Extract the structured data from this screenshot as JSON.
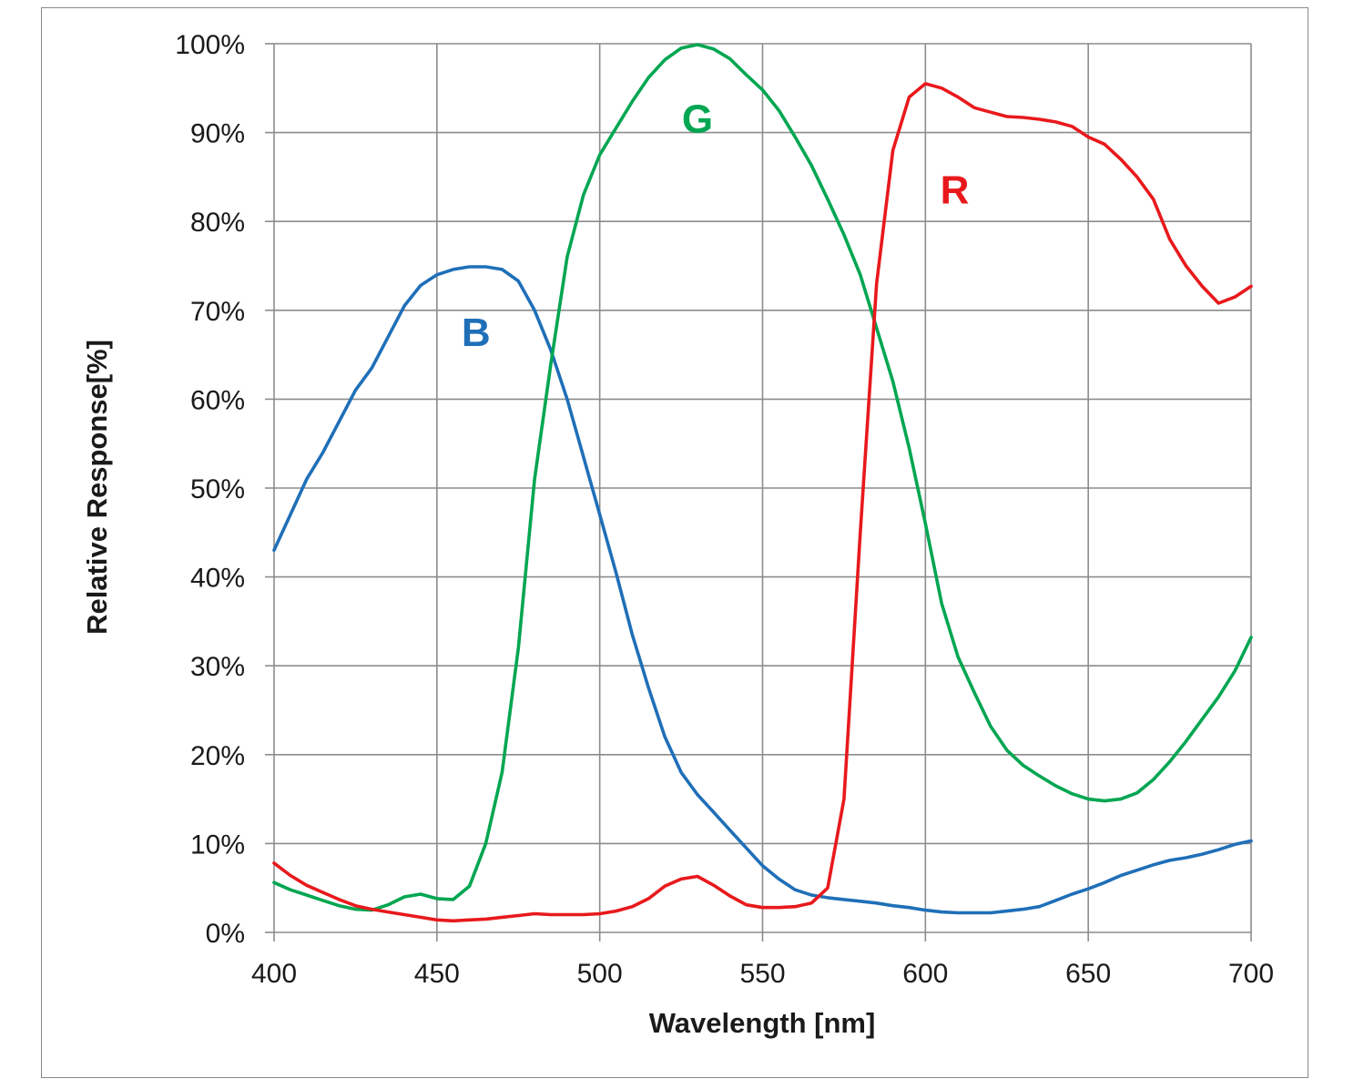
{
  "chart_data": {
    "type": "line",
    "title": "",
    "xlabel": "Wavelength [nm]",
    "ylabel": "Relative Response[%]",
    "xlim": [
      400,
      700
    ],
    "ylim": [
      0,
      100
    ],
    "x_ticks": [
      400,
      450,
      500,
      550,
      600,
      650,
      700
    ],
    "x_tick_labels": [
      "400",
      "450",
      "500",
      "550",
      "600",
      "650",
      "700"
    ],
    "y_ticks": [
      0,
      10,
      20,
      30,
      40,
      50,
      60,
      70,
      80,
      90,
      100
    ],
    "y_tick_labels": [
      "0%",
      "10%",
      "20%",
      "30%",
      "40%",
      "50%",
      "60%",
      "70%",
      "80%",
      "90%",
      "100%"
    ],
    "grid": true,
    "legend": "none",
    "annotations": [
      {
        "text": "B",
        "color": "#1f6fb8",
        "x": 462,
        "y": 66
      },
      {
        "text": "G",
        "color": "#00a651",
        "x": 530,
        "y": 90
      },
      {
        "text": "R",
        "color": "#e8191c",
        "x": 609,
        "y": 82
      }
    ],
    "series": [
      {
        "name": "B",
        "color": "#1f6fb8",
        "x": [
          400,
          405,
          410,
          415,
          420,
          425,
          430,
          435,
          440,
          445,
          450,
          455,
          460,
          465,
          470,
          475,
          480,
          485,
          490,
          495,
          500,
          505,
          510,
          515,
          520,
          525,
          530,
          535,
          540,
          545,
          550,
          555,
          560,
          565,
          570,
          575,
          580,
          585,
          590,
          595,
          600,
          605,
          610,
          615,
          620,
          625,
          630,
          635,
          640,
          645,
          650,
          655,
          660,
          665,
          670,
          675,
          680,
          685,
          690,
          695,
          700
        ],
        "y": [
          43,
          47,
          51,
          54,
          57.5,
          61,
          63.5,
          67,
          70.5,
          72.8,
          74,
          74.6,
          74.9,
          74.9,
          74.6,
          73.3,
          70,
          65.5,
          60,
          53.5,
          47,
          40.5,
          33.5,
          27.5,
          22,
          18,
          15.5,
          13.5,
          11.5,
          9.5,
          7.5,
          6,
          4.8,
          4.2,
          3.9,
          3.7,
          3.5,
          3.3,
          3.0,
          2.8,
          2.5,
          2.3,
          2.2,
          2.2,
          2.2,
          2.4,
          2.6,
          2.9,
          3.6,
          4.3,
          4.9,
          5.6,
          6.4,
          7.0,
          7.6,
          8.1,
          8.4,
          8.8,
          9.3,
          9.9,
          10.3
        ]
      },
      {
        "name": "G",
        "color": "#00a651",
        "x": [
          400,
          405,
          410,
          415,
          420,
          425,
          430,
          435,
          440,
          445,
          450,
          455,
          460,
          465,
          470,
          475,
          480,
          485,
          490,
          495,
          500,
          505,
          510,
          515,
          520,
          525,
          530,
          535,
          540,
          545,
          550,
          555,
          560,
          565,
          570,
          575,
          580,
          585,
          590,
          595,
          600,
          605,
          610,
          615,
          620,
          625,
          630,
          635,
          640,
          645,
          650,
          655,
          660,
          665,
          670,
          675,
          680,
          685,
          690,
          695,
          700
        ],
        "y": [
          5.6,
          4.8,
          4.2,
          3.6,
          3.0,
          2.6,
          2.5,
          3.1,
          4.0,
          4.3,
          3.8,
          3.7,
          5.2,
          10,
          18,
          32,
          51,
          64,
          76,
          83,
          87.5,
          90.5,
          93.5,
          96.2,
          98.2,
          99.5,
          99.9,
          99.4,
          98.3,
          96.5,
          94.8,
          92.5,
          89.5,
          86.3,
          82.5,
          78.5,
          74,
          68,
          62,
          54.5,
          46,
          37,
          31,
          27,
          23.2,
          20.5,
          18.8,
          17.6,
          16.5,
          15.6,
          15.0,
          14.8,
          15.0,
          15.7,
          17.2,
          19.2,
          21.5,
          24.0,
          26.5,
          29.4,
          33.2
        ]
      },
      {
        "name": "R",
        "color": "#e8191c",
        "x": [
          400,
          405,
          410,
          415,
          420,
          425,
          430,
          435,
          440,
          445,
          450,
          455,
          460,
          465,
          470,
          475,
          480,
          485,
          490,
          495,
          500,
          505,
          510,
          515,
          520,
          525,
          530,
          535,
          540,
          545,
          550,
          555,
          560,
          565,
          570,
          575,
          580,
          585,
          590,
          595,
          600,
          605,
          610,
          615,
          620,
          625,
          630,
          635,
          640,
          645,
          650,
          655,
          660,
          665,
          670,
          675,
          680,
          685,
          690,
          695,
          700
        ],
        "y": [
          7.8,
          6.4,
          5.3,
          4.5,
          3.7,
          3.0,
          2.6,
          2.3,
          2.0,
          1.7,
          1.4,
          1.3,
          1.4,
          1.5,
          1.7,
          1.9,
          2.1,
          2.0,
          2.0,
          2.0,
          2.1,
          2.4,
          2.9,
          3.8,
          5.2,
          6.0,
          6.3,
          5.3,
          4.1,
          3.1,
          2.8,
          2.8,
          2.9,
          3.3,
          5.0,
          15,
          45,
          73,
          88,
          94,
          95.5,
          95,
          94,
          92.8,
          92.3,
          91.8,
          91.7,
          91.5,
          91.2,
          90.7,
          89.5,
          88.7,
          87,
          85,
          82.5,
          78,
          75,
          72.7,
          70.8,
          71.5,
          72.7
        ]
      }
    ]
  }
}
